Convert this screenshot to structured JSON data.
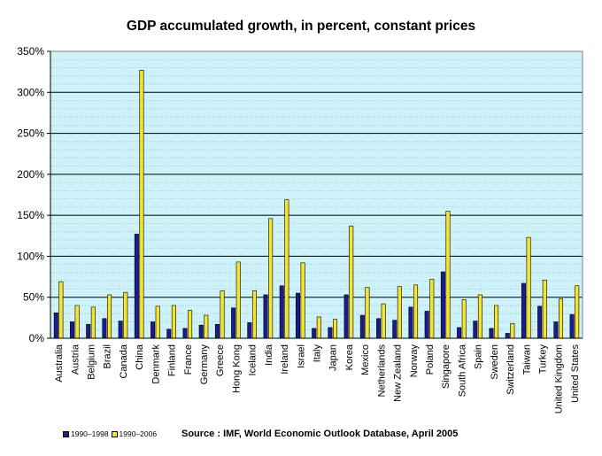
{
  "chart_data": {
    "type": "bar",
    "title": "GDP accumulated growth, in percent, constant prices",
    "xlabel": "",
    "ylabel": "",
    "ylim": [
      0,
      350
    ],
    "yticks": [
      "0%",
      "50%",
      "100%",
      "150%",
      "200%",
      "250%",
      "300%",
      "350%"
    ],
    "grid": true,
    "legend_position": "bottom-left",
    "categories": [
      "Australia",
      "Austria",
      "Belgium",
      "Brazil",
      "Canada",
      "China",
      "Denmark",
      "Finland",
      "France",
      "Germany",
      "Greece",
      "Hong Kong",
      "Iceland",
      "India",
      "Ireland",
      "Israel",
      "Italy",
      "Japan",
      "Korea",
      "Mexico",
      "Netherlands",
      "New Zealand",
      "Norway",
      "Poland",
      "Singapore",
      "South Africa",
      "Spain",
      "Sweden",
      "Switzerland",
      "Taiwan",
      "Turkey",
      "United Kingdom",
      "United States"
    ],
    "series": [
      {
        "name": "1990–1998",
        "color": "#1c1c8c",
        "values": [
          31,
          20,
          17,
          24,
          21,
          127,
          20,
          11,
          12,
          16,
          17,
          37,
          19,
          53,
          64,
          55,
          12,
          13,
          53,
          28,
          24,
          22,
          38,
          33,
          81,
          13,
          21,
          12,
          6,
          67,
          39,
          20,
          29
        ]
      },
      {
        "name": "1990–2006",
        "color": "#f5e42d",
        "values": [
          69,
          40,
          38,
          53,
          56,
          327,
          39,
          40,
          34,
          28,
          58,
          93,
          58,
          146,
          169,
          92,
          26,
          23,
          137,
          62,
          42,
          63,
          65,
          72,
          155,
          47,
          53,
          40,
          18,
          123,
          71,
          48,
          64
        ]
      }
    ],
    "source": "Source : IMF, World Economic Outlook Database, April 2005"
  },
  "colors": {
    "plot_background": "#cdf2fa",
    "gridline": "#000000",
    "series_1": "#1c1c8c",
    "series_2": "#f5e42d"
  }
}
